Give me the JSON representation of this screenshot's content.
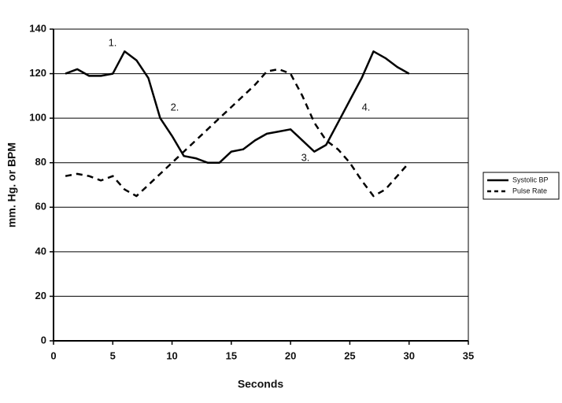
{
  "chart_data": {
    "type": "line",
    "x_label": "Seconds",
    "y_label": "mm. Hg. or BPM",
    "x": [
      1,
      2,
      3,
      4,
      5,
      6,
      7,
      8,
      9,
      10,
      11,
      12,
      13,
      14,
      15,
      16,
      17,
      18,
      19,
      20,
      21,
      22,
      23,
      24,
      25,
      26,
      27,
      28,
      29,
      30
    ],
    "series": [
      {
        "name": "Systolic BP",
        "color": "#000000",
        "dash": "solid",
        "values": [
          120,
          122,
          119,
          119,
          120,
          130,
          126,
          118,
          100,
          92,
          83,
          82,
          80,
          80,
          85,
          86,
          90,
          93,
          94,
          95,
          90,
          85,
          88,
          98,
          108,
          118,
          130,
          127,
          123,
          120
        ]
      },
      {
        "name": "Pulse Rate",
        "color": "#000000",
        "dash": "dashed",
        "values": [
          74,
          75,
          74,
          72,
          74,
          68,
          65,
          70,
          75,
          80,
          85,
          90,
          95,
          100,
          105,
          110,
          115,
          121,
          122,
          120,
          110,
          98,
          90,
          86,
          80,
          72,
          65,
          68,
          74,
          80
        ]
      }
    ],
    "annotations": [
      "1.",
      "2.",
      "3.",
      "4."
    ],
    "xlim": [
      0,
      35
    ],
    "xticks": [
      0,
      5,
      10,
      15,
      20,
      25,
      30,
      35
    ],
    "ylim": [
      0,
      140
    ],
    "yticks": [
      0,
      20,
      40,
      60,
      80,
      100,
      120,
      140
    ],
    "grid": true,
    "legend": "right"
  }
}
